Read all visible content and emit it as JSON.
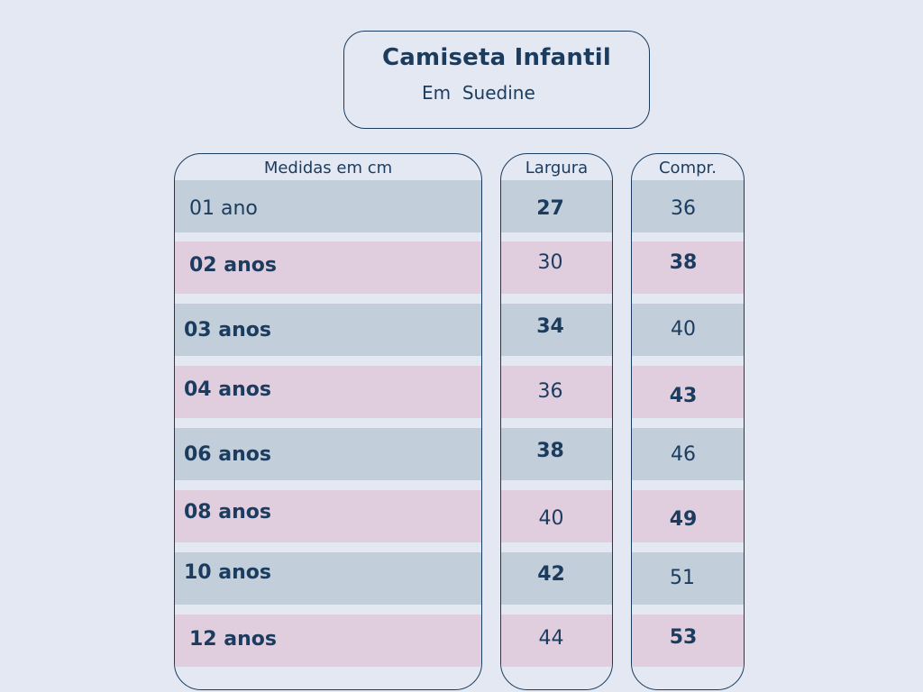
{
  "title": "Camiseta Infantil",
  "subtitle": "Em  Suedine",
  "columns": {
    "size_header": "Medidas em cm",
    "width_header": "Largura",
    "length_header": "Compr."
  },
  "rows": [
    {
      "size": "01 ano",
      "largura": "27",
      "comprimento": "36"
    },
    {
      "size": "02 anos",
      "largura": "30",
      "comprimento": "38"
    },
    {
      "size": "03 anos",
      "largura": "34",
      "comprimento": "40"
    },
    {
      "size": "04 anos",
      "largura": "36",
      "comprimento": "43"
    },
    {
      "size": "06 anos",
      "largura": "38",
      "comprimento": "46"
    },
    {
      "size": "08 anos",
      "largura": "40",
      "comprimento": "49"
    },
    {
      "size": "10 anos",
      "largura": "42",
      "comprimento": "51"
    },
    {
      "size": "12 anos",
      "largura": "44",
      "comprimento": "53"
    }
  ],
  "colors": {
    "background": "#e4e8f3",
    "text": "#1b3c5e",
    "row_blue": "#c2ceda",
    "row_pink": "#e0cdde"
  }
}
